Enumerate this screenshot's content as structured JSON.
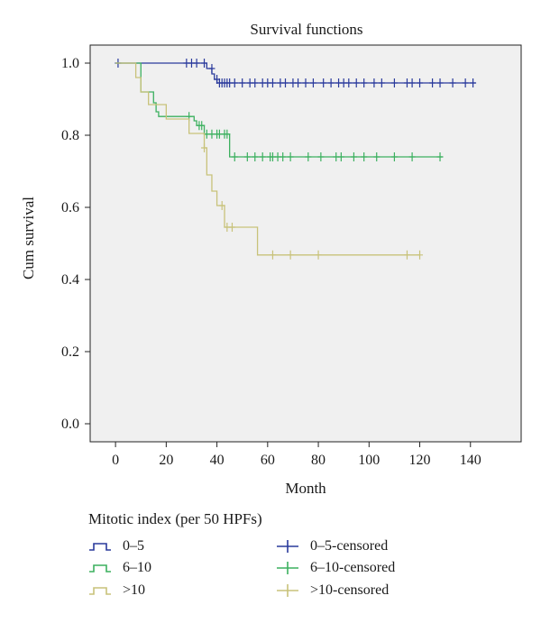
{
  "chart_data": {
    "type": "line",
    "subtype": "kaplan-meier survival curves",
    "title": "Survival functions",
    "xlabel": "Month",
    "ylabel": "Cum survival",
    "xlim": [
      -10,
      160
    ],
    "ylim": [
      -0.05,
      1.05
    ],
    "xticks": [
      0,
      20,
      40,
      60,
      80,
      100,
      120,
      140
    ],
    "yticks": [
      0.0,
      0.2,
      0.4,
      0.6,
      0.8,
      1.0
    ],
    "xtick_labels": [
      "0",
      "20",
      "40",
      "60",
      "80",
      "100",
      "120",
      "140"
    ],
    "ytick_labels": [
      "0.0",
      "0.2",
      "0.4",
      "0.6",
      "0.8",
      "1.0"
    ],
    "grid": false,
    "plot_background": "#f0f0f0",
    "legend": {
      "title": "Mitotic index (per 50 HPFs)",
      "placement": "bottom",
      "entries": [
        {
          "label": "0–5",
          "kind": "line",
          "color": "#2a3a9c"
        },
        {
          "label": "6–10",
          "kind": "line",
          "color": "#3cb05f"
        },
        {
          "label": ">10",
          "kind": "line",
          "color": "#c8c27a"
        },
        {
          "label": "0–5-censored",
          "kind": "censor",
          "color": "#2a3a9c"
        },
        {
          "label": "6–10-censored",
          "kind": "censor",
          "color": "#3cb05f"
        },
        {
          "label": ">10-censored",
          "kind": "censor",
          "color": "#c8c27a"
        }
      ]
    },
    "series": [
      {
        "name": "0–5",
        "color": "#2a3a9c",
        "steps": [
          [
            0,
            1.0
          ],
          [
            36,
            1.0
          ],
          [
            36,
            0.985
          ],
          [
            38,
            0.985
          ],
          [
            38,
            0.97
          ],
          [
            39,
            0.97
          ],
          [
            39,
            0.955
          ],
          [
            40,
            0.955
          ],
          [
            40,
            0.945
          ],
          [
            142,
            0.945
          ]
        ],
        "censored": [
          [
            1,
            1.0
          ],
          [
            28,
            1.0
          ],
          [
            30,
            1.0
          ],
          [
            32,
            1.0
          ],
          [
            35,
            1.0
          ],
          [
            38,
            0.985
          ],
          [
            40,
            0.955
          ],
          [
            41,
            0.945
          ],
          [
            42,
            0.945
          ],
          [
            43,
            0.945
          ],
          [
            44,
            0.945
          ],
          [
            45,
            0.945
          ],
          [
            47,
            0.945
          ],
          [
            50,
            0.945
          ],
          [
            53,
            0.945
          ],
          [
            55,
            0.945
          ],
          [
            58,
            0.945
          ],
          [
            60,
            0.945
          ],
          [
            62,
            0.945
          ],
          [
            65,
            0.945
          ],
          [
            67,
            0.945
          ],
          [
            70,
            0.945
          ],
          [
            72,
            0.945
          ],
          [
            75,
            0.945
          ],
          [
            78,
            0.945
          ],
          [
            82,
            0.945
          ],
          [
            85,
            0.945
          ],
          [
            88,
            0.945
          ],
          [
            90,
            0.945
          ],
          [
            92,
            0.945
          ],
          [
            95,
            0.945
          ],
          [
            98,
            0.945
          ],
          [
            102,
            0.945
          ],
          [
            105,
            0.945
          ],
          [
            110,
            0.945
          ],
          [
            115,
            0.945
          ],
          [
            117,
            0.945
          ],
          [
            120,
            0.945
          ],
          [
            125,
            0.945
          ],
          [
            128,
            0.945
          ],
          [
            133,
            0.945
          ],
          [
            138,
            0.945
          ],
          [
            141,
            0.945
          ]
        ]
      },
      {
        "name": "6–10",
        "color": "#3cb05f",
        "steps": [
          [
            0,
            1.0
          ],
          [
            10,
            1.0
          ],
          [
            10,
            0.92
          ],
          [
            15,
            0.92
          ],
          [
            15,
            0.89
          ],
          [
            16,
            0.89
          ],
          [
            16,
            0.865
          ],
          [
            17,
            0.865
          ],
          [
            17,
            0.852
          ],
          [
            31,
            0.852
          ],
          [
            31,
            0.84
          ],
          [
            32,
            0.84
          ],
          [
            32,
            0.827
          ],
          [
            35,
            0.827
          ],
          [
            35,
            0.803
          ],
          [
            45,
            0.803
          ],
          [
            45,
            0.74
          ],
          [
            129,
            0.74
          ]
        ],
        "censored": [
          [
            29,
            0.852
          ],
          [
            33,
            0.827
          ],
          [
            34,
            0.827
          ],
          [
            36,
            0.803
          ],
          [
            38,
            0.803
          ],
          [
            40,
            0.803
          ],
          [
            41,
            0.803
          ],
          [
            43,
            0.803
          ],
          [
            44,
            0.803
          ],
          [
            47,
            0.74
          ],
          [
            52,
            0.74
          ],
          [
            55,
            0.74
          ],
          [
            58,
            0.74
          ],
          [
            61,
            0.74
          ],
          [
            62,
            0.74
          ],
          [
            64,
            0.74
          ],
          [
            66,
            0.74
          ],
          [
            69,
            0.74
          ],
          [
            76,
            0.74
          ],
          [
            81,
            0.74
          ],
          [
            87,
            0.74
          ],
          [
            89,
            0.74
          ],
          [
            94,
            0.74
          ],
          [
            98,
            0.74
          ],
          [
            103,
            0.74
          ],
          [
            110,
            0.74
          ],
          [
            117,
            0.74
          ],
          [
            128,
            0.74
          ]
        ]
      },
      {
        "name": ">10",
        "color": "#c8c27a",
        "steps": [
          [
            0,
            1.0
          ],
          [
            8,
            1.0
          ],
          [
            8,
            0.96
          ],
          [
            10,
            0.96
          ],
          [
            10,
            0.92
          ],
          [
            13,
            0.92
          ],
          [
            13,
            0.885
          ],
          [
            20,
            0.885
          ],
          [
            20,
            0.845
          ],
          [
            29,
            0.845
          ],
          [
            29,
            0.805
          ],
          [
            35,
            0.805
          ],
          [
            35,
            0.765
          ],
          [
            36,
            0.765
          ],
          [
            36,
            0.69
          ],
          [
            38,
            0.69
          ],
          [
            38,
            0.645
          ],
          [
            40,
            0.645
          ],
          [
            40,
            0.605
          ],
          [
            43,
            0.605
          ],
          [
            43,
            0.545
          ],
          [
            56,
            0.545
          ],
          [
            56,
            0.468
          ],
          [
            120,
            0.468
          ]
        ],
        "censored": [
          [
            35,
            0.765
          ],
          [
            42,
            0.605
          ],
          [
            44,
            0.545
          ],
          [
            46,
            0.545
          ],
          [
            62,
            0.468
          ],
          [
            69,
            0.468
          ],
          [
            80,
            0.468
          ],
          [
            115,
            0.468
          ],
          [
            120,
            0.468
          ]
        ]
      }
    ]
  }
}
